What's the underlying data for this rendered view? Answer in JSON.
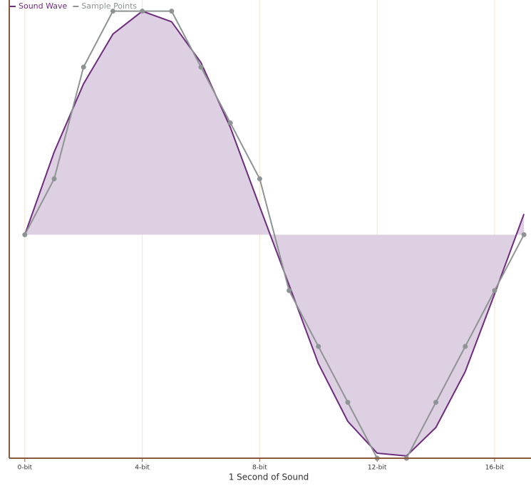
{
  "chart_data": {
    "type": "line",
    "x_label": "1 Second of Sound",
    "x": [
      0,
      1,
      2,
      3,
      4,
      5,
      6,
      7,
      8,
      9,
      10,
      11,
      12,
      13,
      14,
      15,
      16,
      17
    ],
    "series": [
      {
        "name": "Sound Wave",
        "color": "#6e2d7c",
        "area": true,
        "area_color": "#ddd0e2",
        "values": [
          0,
          1.48,
          2.7,
          3.59,
          4.0,
          3.81,
          3.08,
          1.92,
          0.5,
          -0.9,
          -2.31,
          -3.34,
          -3.91,
          -3.96,
          -3.45,
          -2.45,
          -1.06,
          0.37
        ]
      },
      {
        "name": "Sample Points",
        "color": "#8e9393",
        "markers": true,
        "values": [
          0,
          1,
          3,
          4,
          4,
          4,
          3,
          2,
          1,
          -1,
          -2,
          -3,
          -4,
          -4,
          -3,
          -2,
          -1,
          0
        ]
      }
    ],
    "xlim": [
      -0.53,
      17.24
    ],
    "ylim": [
      -4,
      4.2
    ],
    "xticks": [
      {
        "value": 0,
        "label": "0-bit"
      },
      {
        "value": 4,
        "label": "4-bit"
      },
      {
        "value": 8,
        "label": "8-bit"
      },
      {
        "value": 12,
        "label": "12-bit"
      },
      {
        "value": 16,
        "label": "16-bit"
      }
    ],
    "grid": true
  }
}
